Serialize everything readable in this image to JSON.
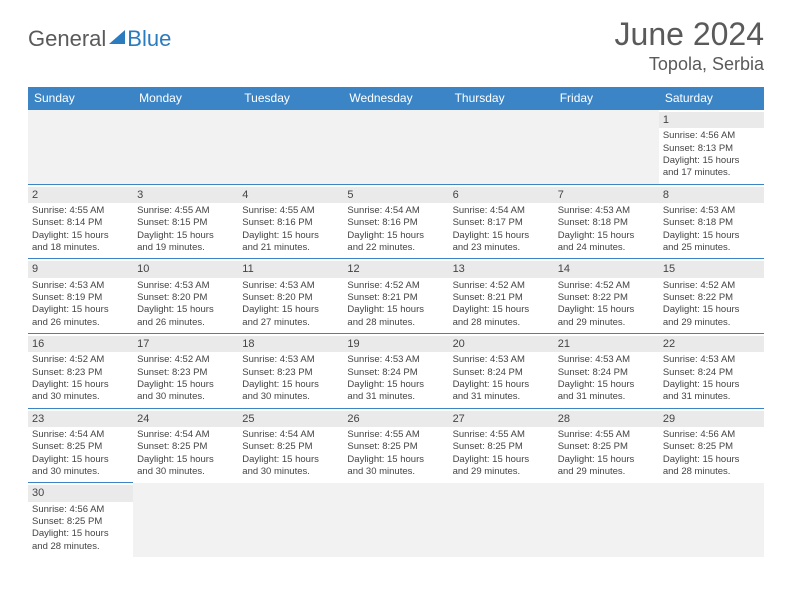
{
  "logo": {
    "part1": "General",
    "part2": "Blue"
  },
  "title": "June 2024",
  "location": "Topola, Serbia",
  "colors": {
    "header_bg": "#3b85c6",
    "header_fg": "#ffffff",
    "daynum_bg": "#eaeaea",
    "border": "#3b85c6",
    "logo_gray": "#5a5a5a",
    "logo_blue": "#2b7bbf"
  },
  "weekdays": [
    "Sunday",
    "Monday",
    "Tuesday",
    "Wednesday",
    "Thursday",
    "Friday",
    "Saturday"
  ],
  "weeks": [
    [
      null,
      null,
      null,
      null,
      null,
      null,
      {
        "n": "1",
        "sunrise": "Sunrise: 4:56 AM",
        "sunset": "Sunset: 8:13 PM",
        "day1": "Daylight: 15 hours",
        "day2": "and 17 minutes."
      }
    ],
    [
      {
        "n": "2",
        "sunrise": "Sunrise: 4:55 AM",
        "sunset": "Sunset: 8:14 PM",
        "day1": "Daylight: 15 hours",
        "day2": "and 18 minutes."
      },
      {
        "n": "3",
        "sunrise": "Sunrise: 4:55 AM",
        "sunset": "Sunset: 8:15 PM",
        "day1": "Daylight: 15 hours",
        "day2": "and 19 minutes."
      },
      {
        "n": "4",
        "sunrise": "Sunrise: 4:55 AM",
        "sunset": "Sunset: 8:16 PM",
        "day1": "Daylight: 15 hours",
        "day2": "and 21 minutes."
      },
      {
        "n": "5",
        "sunrise": "Sunrise: 4:54 AM",
        "sunset": "Sunset: 8:16 PM",
        "day1": "Daylight: 15 hours",
        "day2": "and 22 minutes."
      },
      {
        "n": "6",
        "sunrise": "Sunrise: 4:54 AM",
        "sunset": "Sunset: 8:17 PM",
        "day1": "Daylight: 15 hours",
        "day2": "and 23 minutes."
      },
      {
        "n": "7",
        "sunrise": "Sunrise: 4:53 AM",
        "sunset": "Sunset: 8:18 PM",
        "day1": "Daylight: 15 hours",
        "day2": "and 24 minutes."
      },
      {
        "n": "8",
        "sunrise": "Sunrise: 4:53 AM",
        "sunset": "Sunset: 8:18 PM",
        "day1": "Daylight: 15 hours",
        "day2": "and 25 minutes."
      }
    ],
    [
      {
        "n": "9",
        "sunrise": "Sunrise: 4:53 AM",
        "sunset": "Sunset: 8:19 PM",
        "day1": "Daylight: 15 hours",
        "day2": "and 26 minutes."
      },
      {
        "n": "10",
        "sunrise": "Sunrise: 4:53 AM",
        "sunset": "Sunset: 8:20 PM",
        "day1": "Daylight: 15 hours",
        "day2": "and 26 minutes."
      },
      {
        "n": "11",
        "sunrise": "Sunrise: 4:53 AM",
        "sunset": "Sunset: 8:20 PM",
        "day1": "Daylight: 15 hours",
        "day2": "and 27 minutes."
      },
      {
        "n": "12",
        "sunrise": "Sunrise: 4:52 AM",
        "sunset": "Sunset: 8:21 PM",
        "day1": "Daylight: 15 hours",
        "day2": "and 28 minutes."
      },
      {
        "n": "13",
        "sunrise": "Sunrise: 4:52 AM",
        "sunset": "Sunset: 8:21 PM",
        "day1": "Daylight: 15 hours",
        "day2": "and 28 minutes."
      },
      {
        "n": "14",
        "sunrise": "Sunrise: 4:52 AM",
        "sunset": "Sunset: 8:22 PM",
        "day1": "Daylight: 15 hours",
        "day2": "and 29 minutes."
      },
      {
        "n": "15",
        "sunrise": "Sunrise: 4:52 AM",
        "sunset": "Sunset: 8:22 PM",
        "day1": "Daylight: 15 hours",
        "day2": "and 29 minutes."
      }
    ],
    [
      {
        "n": "16",
        "sunrise": "Sunrise: 4:52 AM",
        "sunset": "Sunset: 8:23 PM",
        "day1": "Daylight: 15 hours",
        "day2": "and 30 minutes."
      },
      {
        "n": "17",
        "sunrise": "Sunrise: 4:52 AM",
        "sunset": "Sunset: 8:23 PM",
        "day1": "Daylight: 15 hours",
        "day2": "and 30 minutes."
      },
      {
        "n": "18",
        "sunrise": "Sunrise: 4:53 AM",
        "sunset": "Sunset: 8:23 PM",
        "day1": "Daylight: 15 hours",
        "day2": "and 30 minutes."
      },
      {
        "n": "19",
        "sunrise": "Sunrise: 4:53 AM",
        "sunset": "Sunset: 8:24 PM",
        "day1": "Daylight: 15 hours",
        "day2": "and 31 minutes."
      },
      {
        "n": "20",
        "sunrise": "Sunrise: 4:53 AM",
        "sunset": "Sunset: 8:24 PM",
        "day1": "Daylight: 15 hours",
        "day2": "and 31 minutes."
      },
      {
        "n": "21",
        "sunrise": "Sunrise: 4:53 AM",
        "sunset": "Sunset: 8:24 PM",
        "day1": "Daylight: 15 hours",
        "day2": "and 31 minutes."
      },
      {
        "n": "22",
        "sunrise": "Sunrise: 4:53 AM",
        "sunset": "Sunset: 8:24 PM",
        "day1": "Daylight: 15 hours",
        "day2": "and 31 minutes."
      }
    ],
    [
      {
        "n": "23",
        "sunrise": "Sunrise: 4:54 AM",
        "sunset": "Sunset: 8:25 PM",
        "day1": "Daylight: 15 hours",
        "day2": "and 30 minutes."
      },
      {
        "n": "24",
        "sunrise": "Sunrise: 4:54 AM",
        "sunset": "Sunset: 8:25 PM",
        "day1": "Daylight: 15 hours",
        "day2": "and 30 minutes."
      },
      {
        "n": "25",
        "sunrise": "Sunrise: 4:54 AM",
        "sunset": "Sunset: 8:25 PM",
        "day1": "Daylight: 15 hours",
        "day2": "and 30 minutes."
      },
      {
        "n": "26",
        "sunrise": "Sunrise: 4:55 AM",
        "sunset": "Sunset: 8:25 PM",
        "day1": "Daylight: 15 hours",
        "day2": "and 30 minutes."
      },
      {
        "n": "27",
        "sunrise": "Sunrise: 4:55 AM",
        "sunset": "Sunset: 8:25 PM",
        "day1": "Daylight: 15 hours",
        "day2": "and 29 minutes."
      },
      {
        "n": "28",
        "sunrise": "Sunrise: 4:55 AM",
        "sunset": "Sunset: 8:25 PM",
        "day1": "Daylight: 15 hours",
        "day2": "and 29 minutes."
      },
      {
        "n": "29",
        "sunrise": "Sunrise: 4:56 AM",
        "sunset": "Sunset: 8:25 PM",
        "day1": "Daylight: 15 hours",
        "day2": "and 28 minutes."
      }
    ],
    [
      {
        "n": "30",
        "sunrise": "Sunrise: 4:56 AM",
        "sunset": "Sunset: 8:25 PM",
        "day1": "Daylight: 15 hours",
        "day2": "and 28 minutes."
      },
      null,
      null,
      null,
      null,
      null,
      null
    ]
  ]
}
